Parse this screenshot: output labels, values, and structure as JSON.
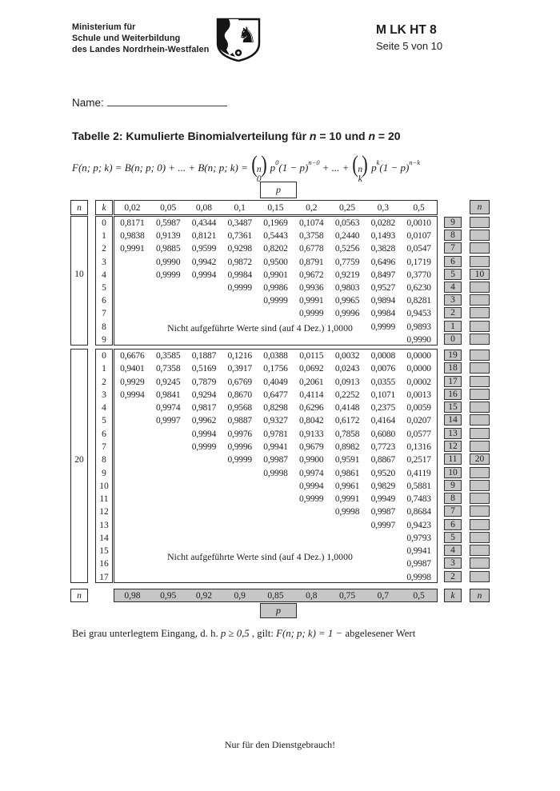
{
  "page": {
    "ministry_lines": [
      "Ministerium für",
      "Schule und Weiterbildung",
      "des Landes Nordrhein-Westfalen"
    ],
    "doc_code": "M LK HT 8",
    "page_info": "Seite 5 von 10",
    "name_label": "Name:",
    "title_segments": [
      {
        "t": "Tabelle 2: Kumulierte Binomialverteilung für ",
        "i": false
      },
      {
        "t": "n",
        "i": true
      },
      {
        "t": " = 10 und ",
        "i": false
      },
      {
        "t": "n",
        "i": true
      },
      {
        "t": " = 20",
        "i": false
      }
    ],
    "footer": "Nur für den Dienstgebrauch!"
  },
  "formula": {
    "lhs": "F(n; p; k) = B(n; p; 0) + ... + B(n; p; k)  =",
    "paren_open": "(",
    "paren_close": ")",
    "binom_top": "n",
    "binom1_bottom": "0",
    "binom2_bottom": "k",
    "p": "p",
    "sup_0": "0",
    "sup_k": "k",
    "one_minus_p": "(1 − p)",
    "sup_n0": "n−0",
    "sup_nk": "n−k",
    "mid": "+ ... +"
  },
  "legend": {
    "segments": [
      {
        "t": "Bei grau unterlegtem Eingang, d. h.  ",
        "i": false
      },
      {
        "t": "p ≥ 0,5",
        "i": true
      },
      {
        "t": " , gilt:  ",
        "i": false
      },
      {
        "t": "F(n; p; k) = 1 −",
        "i": true
      },
      {
        "t": " abgelesener Wert",
        "i": false
      }
    ]
  },
  "table": {
    "p_label": "p",
    "n_label": "n",
    "k_label": "k",
    "note": "Nicht aufgeführte Werte sind (auf 4 Dez.) 1,0000",
    "p_top": [
      "0,02",
      "0,05",
      "0,08",
      "0,1",
      "0,15",
      "0,2",
      "0,25",
      "0,3",
      "0,5"
    ],
    "p_bottom": [
      "0,98",
      "0,95",
      "0,92",
      "0,9",
      "0,85",
      "0,8",
      "0,75",
      "0,7",
      "0,5"
    ],
    "blocks": [
      {
        "n": "10",
        "n_row_index": 4,
        "rows": [
          {
            "k": "0",
            "values": [
              "0,8171",
              "0,5987",
              "0,4344",
              "0,3487",
              "0,1969",
              "0,1074",
              "0,0563",
              "0,0282",
              "0,0010"
            ],
            "rk": "9",
            "far": ""
          },
          {
            "k": "1",
            "values": [
              "0,9838",
              "0,9139",
              "0,8121",
              "0,7361",
              "0,5443",
              "0,3758",
              "0,2440",
              "0,1493",
              "0,0107"
            ],
            "rk": "8",
            "far": ""
          },
          {
            "k": "2",
            "values": [
              "0,9991",
              "0,9885",
              "0,9599",
              "0,9298",
              "0,8202",
              "0,6778",
              "0,5256",
              "0,3828",
              "0,0547"
            ],
            "rk": "7",
            "far": ""
          },
          {
            "k": "3",
            "values": [
              "",
              "0,9990",
              "0,9942",
              "0,9872",
              "0,9500",
              "0,8791",
              "0,7759",
              "0,6496",
              "0,1719"
            ],
            "rk": "6",
            "far": ""
          },
          {
            "k": "4",
            "values": [
              "",
              "0,9999",
              "0,9994",
              "0,9984",
              "0,9901",
              "0,9672",
              "0,9219",
              "0,8497",
              "0,3770"
            ],
            "rk": "5",
            "far": "10"
          },
          {
            "k": "5",
            "values": [
              "",
              "",
              "",
              "0,9999",
              "0,9986",
              "0,9936",
              "0,9803",
              "0,9527",
              "0,6230"
            ],
            "rk": "4",
            "far": ""
          },
          {
            "k": "6",
            "values": [
              "",
              "",
              "",
              "",
              "0,9999",
              "0,9991",
              "0,9965",
              "0,9894",
              "0,8281"
            ],
            "rk": "3",
            "far": ""
          },
          {
            "k": "7",
            "values": [
              "",
              "",
              "",
              "",
              "",
              "0,9999",
              "0,9996",
              "0,9984",
              "0,9453"
            ],
            "rk": "2",
            "far": ""
          },
          {
            "k": "8",
            "values": [
              "",
              "",
              "",
              "",
              "",
              "",
              "",
              "0,9999",
              "0,9893"
            ],
            "rk": "1",
            "far": ""
          },
          {
            "k": "9",
            "values": [
              "",
              "",
              "",
              "",
              "",
              "",
              "",
              "",
              "0,9990"
            ],
            "rk": "0",
            "far": ""
          }
        ]
      },
      {
        "n": "20",
        "n_row_index": 8,
        "rows": [
          {
            "k": "0",
            "values": [
              "0,6676",
              "0,3585",
              "0,1887",
              "0,1216",
              "0,0388",
              "0,0115",
              "0,0032",
              "0,0008",
              "0,0000"
            ],
            "rk": "19",
            "far": ""
          },
          {
            "k": "1",
            "values": [
              "0,9401",
              "0,7358",
              "0,5169",
              "0,3917",
              "0,1756",
              "0,0692",
              "0,0243",
              "0,0076",
              "0,0000"
            ],
            "rk": "18",
            "far": ""
          },
          {
            "k": "2",
            "values": [
              "0,9929",
              "0,9245",
              "0,7879",
              "0,6769",
              "0,4049",
              "0,2061",
              "0,0913",
              "0,0355",
              "0,0002"
            ],
            "rk": "17",
            "far": ""
          },
          {
            "k": "3",
            "values": [
              "0,9994",
              "0,9841",
              "0,9294",
              "0,8670",
              "0,6477",
              "0,4114",
              "0,2252",
              "0,1071",
              "0,0013"
            ],
            "rk": "16",
            "far": ""
          },
          {
            "k": "4",
            "values": [
              "",
              "0,9974",
              "0,9817",
              "0,9568",
              "0,8298",
              "0,6296",
              "0,4148",
              "0,2375",
              "0,0059"
            ],
            "rk": "15",
            "far": ""
          },
          {
            "k": "5",
            "values": [
              "",
              "0,9997",
              "0,9962",
              "0,9887",
              "0,9327",
              "0,8042",
              "0,6172",
              "0,4164",
              "0,0207"
            ],
            "rk": "14",
            "far": ""
          },
          {
            "k": "6",
            "values": [
              "",
              "",
              "0,9994",
              "0,9976",
              "0,9781",
              "0,9133",
              "0,7858",
              "0,6080",
              "0,0577"
            ],
            "rk": "13",
            "far": ""
          },
          {
            "k": "7",
            "values": [
              "",
              "",
              "0,9999",
              "0,9996",
              "0,9941",
              "0,9679",
              "0,8982",
              "0,7723",
              "0,1316"
            ],
            "rk": "12",
            "far": ""
          },
          {
            "k": "8",
            "values": [
              "",
              "",
              "",
              "0,9999",
              "0,9987",
              "0,9900",
              "0,9591",
              "0,8867",
              "0,2517"
            ],
            "rk": "11",
            "far": "20"
          },
          {
            "k": "9",
            "values": [
              "",
              "",
              "",
              "",
              "0,9998",
              "0,9974",
              "0,9861",
              "0,9520",
              "0,4119"
            ],
            "rk": "10",
            "far": ""
          },
          {
            "k": "10",
            "values": [
              "",
              "",
              "",
              "",
              "",
              "0,9994",
              "0,9961",
              "0,9829",
              "0,5881"
            ],
            "rk": "9",
            "far": ""
          },
          {
            "k": "11",
            "values": [
              "",
              "",
              "",
              "",
              "",
              "0,9999",
              "0,9991",
              "0,9949",
              "0,7483"
            ],
            "rk": "8",
            "far": ""
          },
          {
            "k": "12",
            "values": [
              "",
              "",
              "",
              "",
              "",
              "",
              "0,9998",
              "0,9987",
              "0,8684"
            ],
            "rk": "7",
            "far": ""
          },
          {
            "k": "13",
            "values": [
              "",
              "",
              "",
              "",
              "",
              "",
              "",
              "0,9997",
              "0,9423"
            ],
            "rk": "6",
            "far": ""
          },
          {
            "k": "14",
            "values": [
              "",
              "",
              "",
              "",
              "",
              "",
              "",
              "",
              "0,9793"
            ],
            "rk": "5",
            "far": ""
          },
          {
            "k": "15",
            "values": [
              "",
              "",
              "",
              "",
              "",
              "",
              "",
              "",
              "0,9941"
            ],
            "rk": "4",
            "far": ""
          },
          {
            "k": "16",
            "values": [
              "",
              "",
              "",
              "",
              "",
              "",
              "",
              "",
              "0,9987"
            ],
            "rk": "3",
            "far": ""
          },
          {
            "k": "17",
            "values": [
              "",
              "",
              "",
              "",
              "",
              "",
              "",
              "",
              "0,9998"
            ],
            "rk": "2",
            "far": ""
          }
        ]
      }
    ]
  }
}
